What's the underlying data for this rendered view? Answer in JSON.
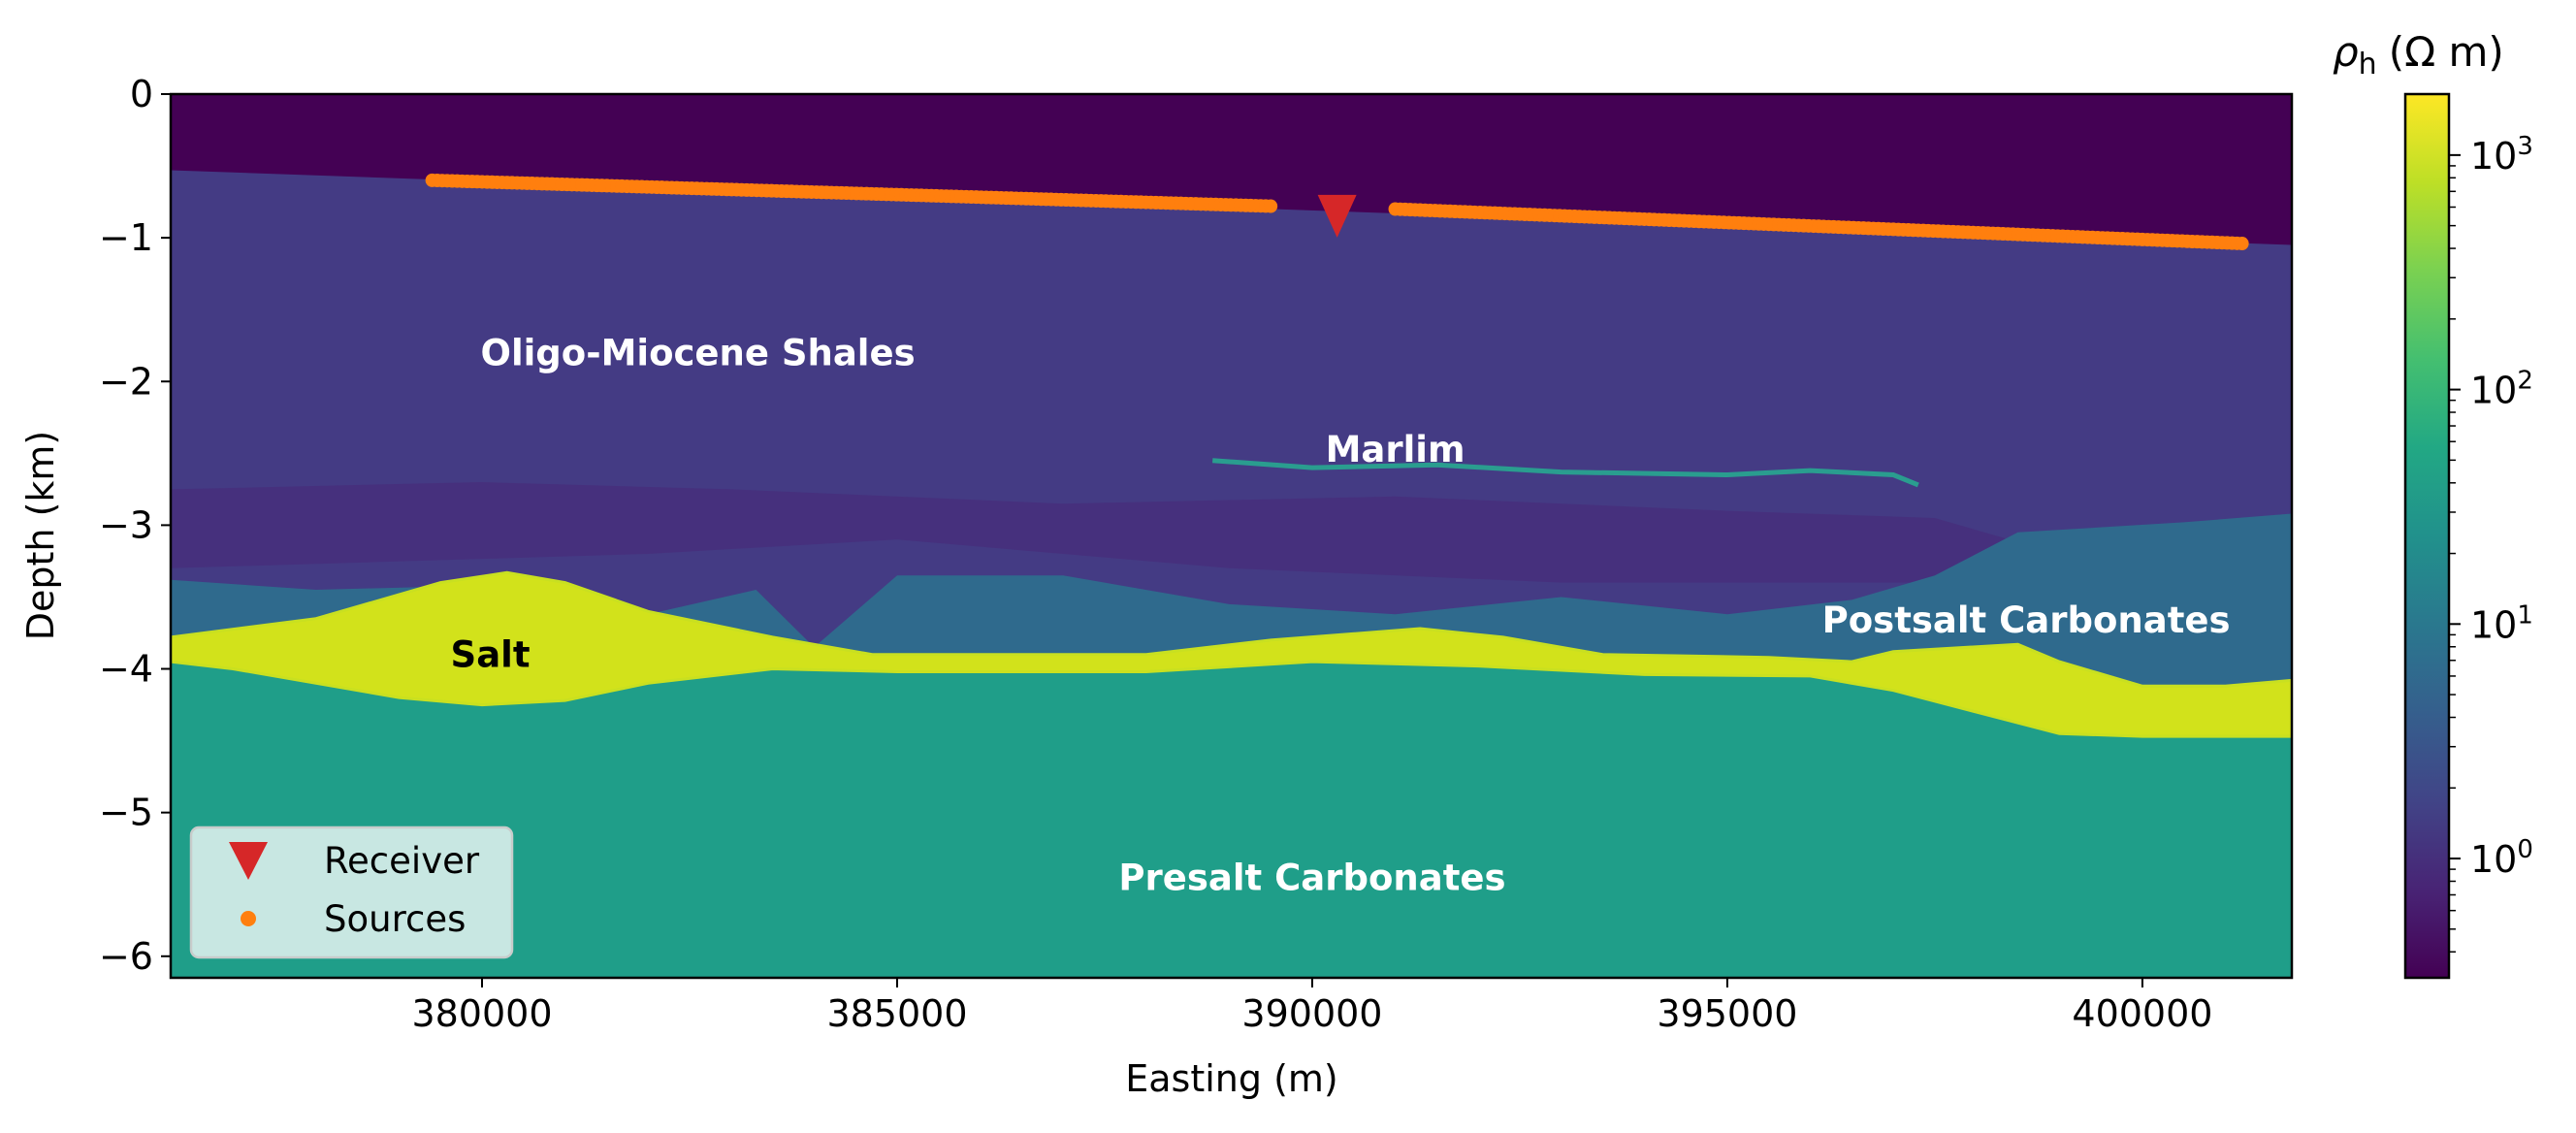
{
  "chart_data": {
    "type": "heatmap",
    "title": "",
    "xlabel": "Easting (m)",
    "ylabel": "Depth (km)",
    "xlim": [
      376250,
      401800
    ],
    "ylim": [
      -6.15,
      0
    ],
    "xticks": [
      380000,
      385000,
      390000,
      395000,
      400000
    ],
    "xtick_labels": [
      "380000",
      "385000",
      "390000",
      "395000",
      "400000"
    ],
    "yticks": [
      0,
      -1,
      -2,
      -3,
      -4,
      -5,
      -6
    ],
    "ytick_labels": [
      "0",
      "−1",
      "−2",
      "−3",
      "−4",
      "−5",
      "−6"
    ],
    "grid": false,
    "colorbar": {
      "label_symbol": "ρ",
      "label_sub": "h",
      "label_unit": "(Ω m)",
      "colormap": "viridis",
      "scale": "log",
      "range": [
        0.31,
        1820
      ],
      "ticks": [
        1,
        10,
        100,
        1000
      ],
      "tick_labels": [
        {
          "base": "10",
          "exp": "0"
        },
        {
          "base": "10",
          "exp": "1"
        },
        {
          "base": "10",
          "exp": "2"
        },
        {
          "base": "10",
          "exp": "3"
        }
      ]
    },
    "annotations": [
      {
        "text": "Oligo-Miocene Shales",
        "x": 382600,
        "y": -1.8,
        "color": "#ffffff"
      },
      {
        "text": "Marlim",
        "x": 391000,
        "y": -2.47,
        "color": "#ffffff"
      },
      {
        "text": "Salt",
        "x": 380100,
        "y": -3.9,
        "color": "#000000"
      },
      {
        "text": "Postsalt Carbonates",
        "x": 398600,
        "y": -3.66,
        "color": "#ffffff"
      },
      {
        "text": "Presalt Carbonates",
        "x": 390000,
        "y": -5.45,
        "color": "#ffffff"
      }
    ],
    "series": [
      {
        "name": "Receiver",
        "marker": "triangle-down",
        "color": "#d62728",
        "points": [
          [
            390300,
            -0.85
          ]
        ]
      },
      {
        "name": "Sources",
        "marker": "circle",
        "color": "#ff7f0e",
        "segments": [
          {
            "start": [
              379400,
              -0.6
            ],
            "end": [
              389500,
              -0.78
            ]
          },
          {
            "start": [
              391000,
              -0.8
            ],
            "end": [
              401200,
              -1.04
            ]
          }
        ]
      }
    ],
    "legend": {
      "placement": "lower-left",
      "entries": [
        "Receiver",
        "Sources"
      ]
    },
    "region_colors": {
      "water": "#440154",
      "shales": "#443b84",
      "shales_dark": "#472e7c",
      "postsalt": "#2f6a8d",
      "salt": "#d2e21b",
      "presalt": "#1f9e89",
      "marlim": "#2a9d8f"
    }
  }
}
